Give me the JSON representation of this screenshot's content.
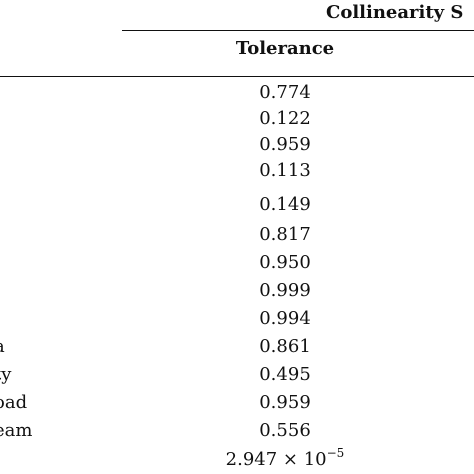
{
  "table": {
    "group_header": "Collinearity S",
    "column_header": "Tolerance",
    "rows": [
      {
        "label": "",
        "value": "0.774"
      },
      {
        "label": "",
        "value": "0.122"
      },
      {
        "label": "",
        "value": "0.959"
      },
      {
        "label": "",
        "value": "0.113"
      },
      {
        "label": "",
        "value": "0.149"
      },
      {
        "label": "",
        "value": "0.817"
      },
      {
        "label": "",
        "value": "0.950"
      },
      {
        "label": "",
        "value": "0.999"
      },
      {
        "label": "",
        "value": "0.994"
      },
      {
        "label": "a",
        "value": "0.861"
      },
      {
        "label": "ty",
        "value": "0.495"
      },
      {
        "label": "oad",
        "value": "0.959"
      },
      {
        "label": "eam",
        "value": "0.556"
      }
    ],
    "last_row": {
      "label": "",
      "mantissa": "2.947 × 10",
      "exponent": "−5"
    }
  }
}
